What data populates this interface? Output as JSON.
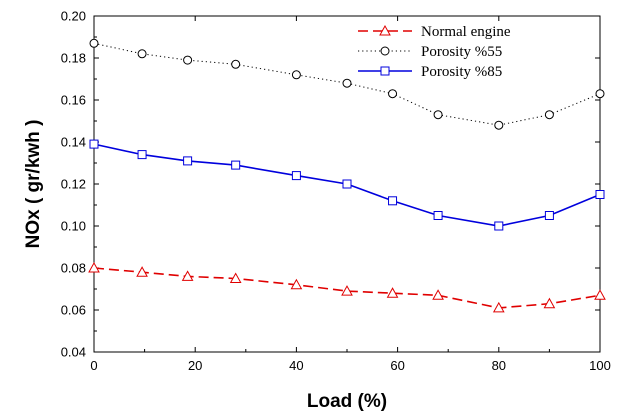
{
  "chart_data": {
    "type": "line",
    "title": "",
    "xlabel": "Load (%)",
    "ylabel": "NOx ( gr/kwh )",
    "xlim": [
      0,
      100
    ],
    "ylim": [
      0.04,
      0.2
    ],
    "x_ticks": [
      0,
      20,
      40,
      60,
      80,
      100
    ],
    "y_ticks": [
      0.04,
      0.06,
      0.08,
      0.1,
      0.12,
      0.14,
      0.16,
      0.18,
      0.2
    ],
    "x_tick_labels": [
      "0",
      "20",
      "40",
      "60",
      "80",
      "100"
    ],
    "y_tick_labels": [
      "0.04",
      "0.06",
      "0.08",
      "0.10",
      "0.12",
      "0.14",
      "0.16",
      "0.18",
      "0.20"
    ],
    "grid": false,
    "legend_position": "top-right",
    "series": [
      {
        "name": "Normal engine",
        "color": "#e00000",
        "line_style": "dashed",
        "marker": "triangle",
        "x": [
          0,
          9.5,
          18.5,
          28,
          40,
          50,
          59,
          68,
          80,
          90,
          100
        ],
        "y": [
          0.08,
          0.078,
          0.076,
          0.075,
          0.072,
          0.069,
          0.068,
          0.067,
          0.061,
          0.063,
          0.067
        ]
      },
      {
        "name": "Porosity %55",
        "color": "#000000",
        "line_style": "dotted",
        "marker": "circle",
        "x": [
          0,
          9.5,
          18.5,
          28,
          40,
          50,
          59,
          68,
          80,
          90,
          100
        ],
        "y": [
          0.187,
          0.182,
          0.179,
          0.177,
          0.172,
          0.168,
          0.163,
          0.153,
          0.148,
          0.153,
          0.163
        ]
      },
      {
        "name": "Porosity %85",
        "color": "#0000dd",
        "line_style": "solid",
        "marker": "square",
        "x": [
          0,
          9.5,
          18.5,
          28,
          40,
          50,
          59,
          68,
          80,
          90,
          100
        ],
        "y": [
          0.139,
          0.134,
          0.131,
          0.129,
          0.124,
          0.12,
          0.112,
          0.105,
          0.1,
          0.105,
          0.115
        ]
      }
    ]
  }
}
